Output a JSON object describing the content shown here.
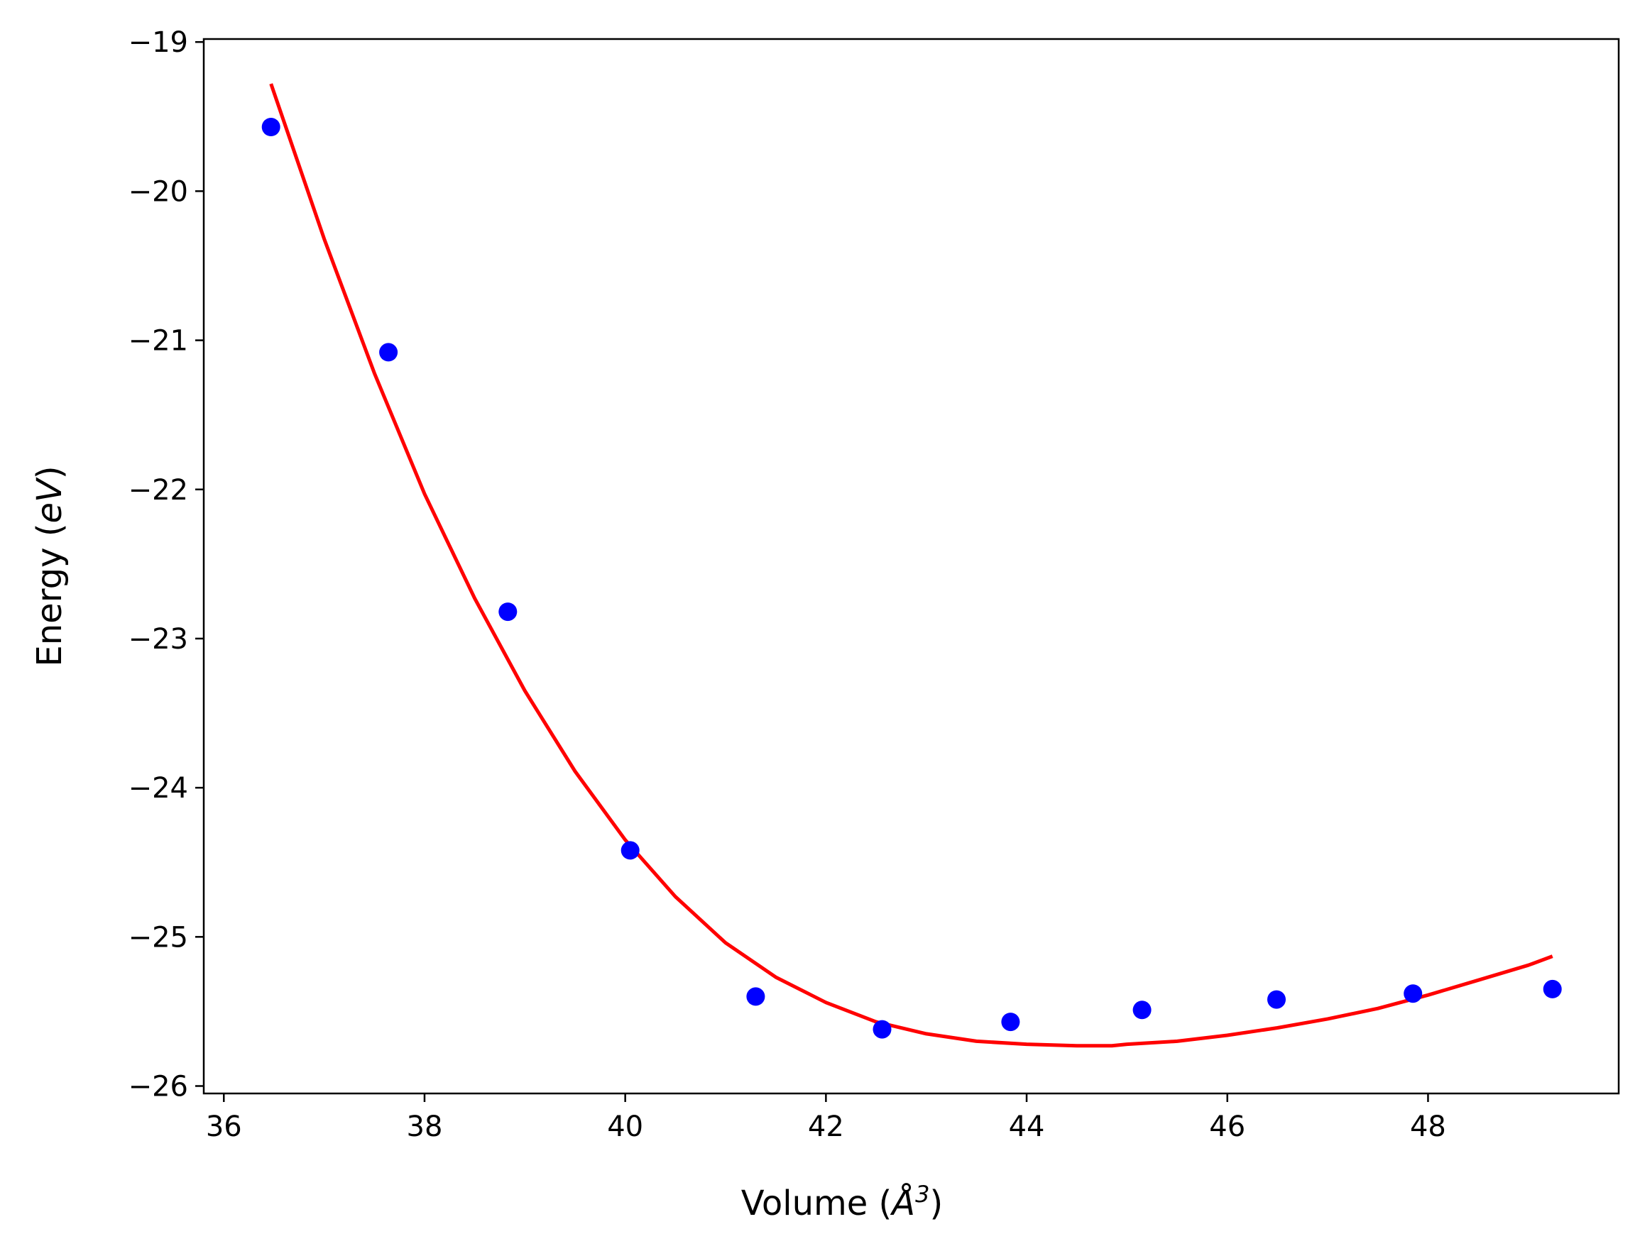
{
  "chart_data": {
    "type": "scatter",
    "title": "",
    "xlabel": {
      "prefix": "Volume (",
      "unit": "Å",
      "exponent": "3",
      "suffix": ")"
    },
    "ylabel": {
      "prefix": "Energy (",
      "unit": "eV",
      "suffix": ")"
    },
    "xlim": [
      35.8,
      49.9
    ],
    "ylim": [
      -26.05,
      -18.98
    ],
    "xticks": [
      36,
      38,
      40,
      42,
      44,
      46,
      48
    ],
    "xtick_labels": [
      "36",
      "38",
      "40",
      "42",
      "44",
      "46",
      "48"
    ],
    "yticks": [
      -19,
      -20,
      -21,
      -22,
      -23,
      -24,
      -25,
      -26
    ],
    "ytick_labels": [
      "−19",
      "−20",
      "−21",
      "−22",
      "−23",
      "−24",
      "−25",
      "−26"
    ],
    "grid": false,
    "series": [
      {
        "name": "data",
        "kind": "scatter",
        "color": "#0000ff",
        "x": [
          36.47,
          37.64,
          38.83,
          40.05,
          41.3,
          42.56,
          43.84,
          45.15,
          46.49,
          47.85,
          49.24
        ],
        "y": [
          -19.57,
          -21.08,
          -22.82,
          -24.42,
          -25.4,
          -25.62,
          -25.57,
          -25.49,
          -25.42,
          -25.38,
          -25.35
        ]
      },
      {
        "name": "fit",
        "kind": "line",
        "color": "#ff0000",
        "x": [
          36.47,
          37.0,
          37.5,
          38.0,
          38.5,
          39.0,
          39.5,
          40.0,
          40.5,
          41.0,
          41.5,
          42.0,
          42.5,
          43.0,
          43.5,
          44.0,
          44.5,
          44.85,
          45.0,
          45.5,
          46.0,
          46.5,
          47.0,
          47.5,
          48.0,
          48.5,
          49.0,
          49.24
        ],
        "y": [
          -19.28,
          -20.32,
          -21.22,
          -22.03,
          -22.73,
          -23.35,
          -23.89,
          -24.35,
          -24.73,
          -25.04,
          -25.27,
          -25.44,
          -25.57,
          -25.65,
          -25.7,
          -25.72,
          -25.73,
          -25.73,
          -25.72,
          -25.7,
          -25.66,
          -25.61,
          -25.55,
          -25.48,
          -25.39,
          -25.29,
          -25.19,
          -25.13
        ]
      }
    ]
  }
}
